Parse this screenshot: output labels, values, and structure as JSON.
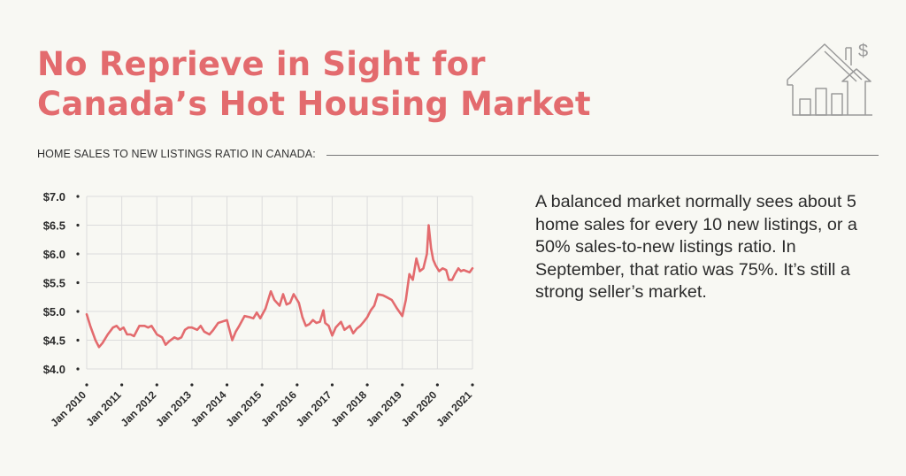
{
  "header": {
    "title_line1": "No Reprieve in Sight for",
    "title_line2": "Canada’s Hot Housing Market",
    "subtitle": "HOME SALES TO NEW LISTINGS RATIO IN CANADA:"
  },
  "note": "A balanced market normally sees about 5 home sales for every 10 new listings, or a 50% sales-to-new listings ratio. In September, that ratio was 75%. It’s still a strong seller’s market.",
  "logo": {
    "icon": "house-chart-dollar-icon",
    "symbol": "$"
  },
  "colors": {
    "accent": "#e36b6e",
    "grid": "#dcdcdc",
    "text": "#2b2b2b",
    "line": "#e36b6e"
  },
  "chart_data": {
    "type": "line",
    "title": "",
    "xlabel": "",
    "ylabel": "",
    "ylim": [
      4.0,
      7.0
    ],
    "xlim": [
      2010.0,
      2021.0
    ],
    "y_ticks": [
      7.0,
      6.5,
      6.0,
      5.5,
      5.0,
      4.5,
      4.0
    ],
    "y_tick_labels": [
      "$7.0",
      "$6.5",
      "$6.0",
      "$5.5",
      "$5.0",
      "$4.5",
      "$4.0"
    ],
    "x_ticks": [
      2010,
      2011,
      2012,
      2013,
      2014,
      2015,
      2016,
      2017,
      2018,
      2019,
      2020,
      2021
    ],
    "x_tick_labels": [
      "Jan 2010",
      "Jan 2011",
      "Jan 2012",
      "Jan 2013",
      "Jan 2014",
      "Jan 2015",
      "Jan 2016",
      "Jan 2017",
      "Jan 2018",
      "Jan 2019",
      "Jan 2020",
      "Jan 2021"
    ],
    "grid": true,
    "legend": "none",
    "series": [
      {
        "x": [
          2010.0,
          2010.1,
          2010.25,
          2010.35,
          2010.45,
          2010.6,
          2010.75,
          2010.85,
          2010.95,
          2011.05,
          2011.15,
          2011.25,
          2011.35,
          2011.5,
          2011.65,
          2011.75,
          2011.85,
          2012.0,
          2012.15,
          2012.25,
          2012.35,
          2012.5,
          2012.6,
          2012.7,
          2012.8,
          2012.9,
          2013.0,
          2013.15,
          2013.25,
          2013.35,
          2013.5,
          2013.6,
          2013.75,
          2013.85,
          2014.0,
          2014.15,
          2014.25,
          2014.35,
          2014.5,
          2014.65,
          2014.75,
          2014.85,
          2014.95,
          2015.1,
          2015.25,
          2015.35,
          2015.5,
          2015.6,
          2015.7,
          2015.8,
          2015.9,
          2016.05,
          2016.15,
          2016.25,
          2016.35,
          2016.45,
          2016.55,
          2016.65,
          2016.75,
          2016.8,
          2016.9,
          2017.0,
          2017.1,
          2017.25,
          2017.35,
          2017.5,
          2017.6,
          2017.7,
          2017.8,
          2017.9,
          2018.0,
          2018.1,
          2018.2,
          2018.3,
          2018.45,
          2018.55,
          2018.7,
          2018.85,
          2019.0,
          2019.1,
          2019.2,
          2019.3,
          2019.4,
          2019.5,
          2019.6,
          2019.7,
          2019.75,
          2019.82,
          2019.88,
          2019.95,
          2020.05,
          2020.15,
          2020.25,
          2020.33,
          2020.42,
          2020.5,
          2020.6,
          2020.67,
          2020.75,
          2020.83,
          2020.92,
          2021.0
        ],
        "values": [
          4.95,
          4.75,
          4.5,
          4.38,
          4.45,
          4.6,
          4.72,
          4.75,
          4.68,
          4.72,
          4.6,
          4.6,
          4.57,
          4.75,
          4.75,
          4.72,
          4.75,
          4.6,
          4.55,
          4.42,
          4.48,
          4.55,
          4.52,
          4.55,
          4.68,
          4.72,
          4.72,
          4.68,
          4.75,
          4.65,
          4.6,
          4.67,
          4.8,
          4.82,
          4.85,
          4.5,
          4.65,
          4.75,
          4.92,
          4.9,
          4.88,
          4.98,
          4.88,
          5.05,
          5.35,
          5.2,
          5.1,
          5.3,
          5.12,
          5.15,
          5.3,
          5.15,
          4.9,
          4.75,
          4.78,
          4.85,
          4.8,
          4.82,
          5.02,
          4.8,
          4.75,
          4.58,
          4.72,
          4.82,
          4.68,
          4.75,
          4.62,
          4.7,
          4.75,
          4.82,
          4.9,
          5.02,
          5.1,
          5.3,
          5.28,
          5.25,
          5.2,
          5.05,
          4.92,
          5.2,
          5.65,
          5.55,
          5.92,
          5.7,
          5.75,
          6.0,
          6.5,
          6.1,
          5.9,
          5.8,
          5.7,
          5.75,
          5.72,
          5.55,
          5.55,
          5.65,
          5.75,
          5.7,
          5.72,
          5.7,
          5.68,
          5.75
        ]
      }
    ]
  }
}
